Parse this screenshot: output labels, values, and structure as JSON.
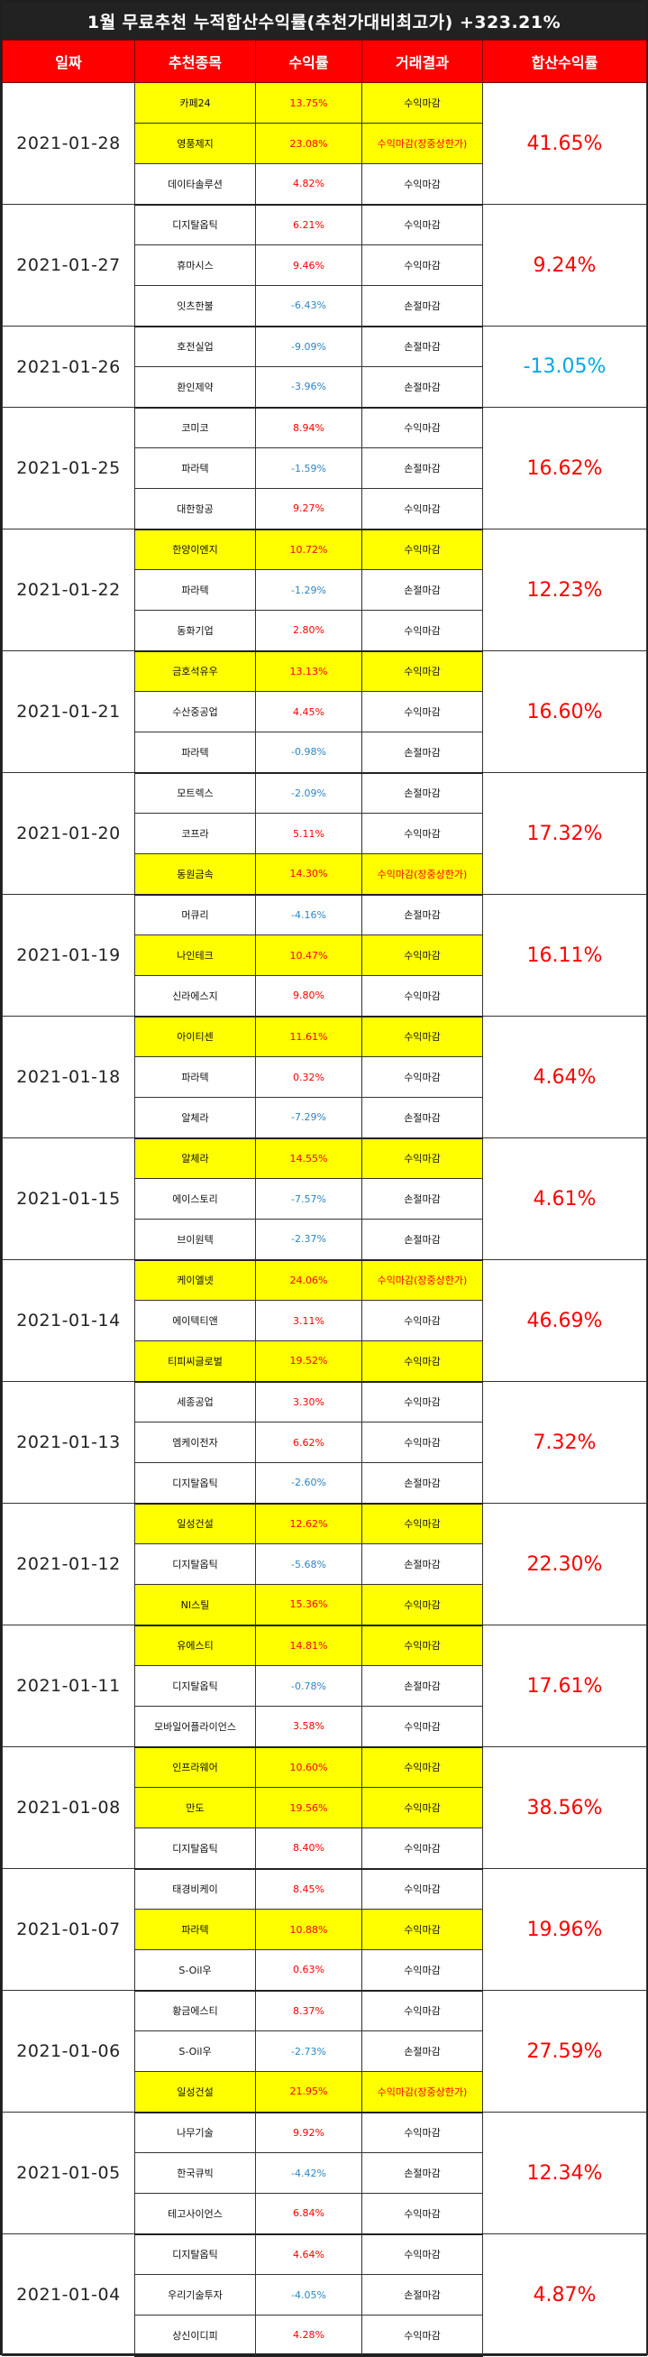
{
  "title": "1월 무료추천 누적합산수익률(추천가대비최고가) +323.21%",
  "headers": {
    "date": "일짜",
    "stock": "추천종목",
    "return": "수익률",
    "result": "거래결과",
    "cumulative": "합산수익률"
  },
  "groups": [
    {
      "date": "2021-01-28",
      "total": "41.65%",
      "rows": [
        {
          "stock": "카페24",
          "ret": "13.75%",
          "result": "수익마감",
          "hl": true
        },
        {
          "stock": "영풍제지",
          "ret": "23.08%",
          "result": "수익마감(장중상한가)",
          "hl": true
        },
        {
          "stock": "데이타솔루션",
          "ret": "4.82%",
          "result": "수익마감",
          "hl": false
        }
      ]
    },
    {
      "date": "2021-01-27",
      "total": "9.24%",
      "rows": [
        {
          "stock": "디지탈옵틱",
          "ret": "6.21%",
          "result": "수익마감",
          "hl": false
        },
        {
          "stock": "휴마시스",
          "ret": "9.46%",
          "result": "수익마감",
          "hl": false
        },
        {
          "stock": "잇츠한불",
          "ret": "-6.43%",
          "result": "손절마감",
          "hl": false
        }
      ]
    },
    {
      "date": "2021-01-26",
      "total": "-13.05%",
      "rows": [
        {
          "stock": "호전실업",
          "ret": "-9.09%",
          "result": "손절마감",
          "hl": false
        },
        {
          "stock": "환인제약",
          "ret": "-3.96%",
          "result": "손절마감",
          "hl": false
        }
      ]
    },
    {
      "date": "2021-01-25",
      "total": "16.62%",
      "rows": [
        {
          "stock": "코미코",
          "ret": "8.94%",
          "result": "수익마감",
          "hl": false
        },
        {
          "stock": "파라텍",
          "ret": "-1.59%",
          "result": "손절마감",
          "hl": false
        },
        {
          "stock": "대한항공",
          "ret": "9.27%",
          "result": "수익마감",
          "hl": false
        }
      ]
    },
    {
      "date": "2021-01-22",
      "total": "12.23%",
      "rows": [
        {
          "stock": "한양이엔지",
          "ret": "10.72%",
          "result": "수익마감",
          "hl": true
        },
        {
          "stock": "파라텍",
          "ret": "-1.29%",
          "result": "손절마감",
          "hl": false
        },
        {
          "stock": "동화기업",
          "ret": "2.80%",
          "result": "수익마감",
          "hl": false
        }
      ]
    },
    {
      "date": "2021-01-21",
      "total": "16.60%",
      "rows": [
        {
          "stock": "금호석유우",
          "ret": "13.13%",
          "result": "수익마감",
          "hl": true
        },
        {
          "stock": "수산중공업",
          "ret": "4.45%",
          "result": "수익마감",
          "hl": false
        },
        {
          "stock": "파라텍",
          "ret": "-0.98%",
          "result": "손절마감",
          "hl": false
        }
      ]
    },
    {
      "date": "2021-01-20",
      "total": "17.32%",
      "rows": [
        {
          "stock": "모트렉스",
          "ret": "-2.09%",
          "result": "손절마감",
          "hl": false
        },
        {
          "stock": "코프라",
          "ret": "5.11%",
          "result": "수익마감",
          "hl": false
        },
        {
          "stock": "동원금속",
          "ret": "14.30%",
          "result": "수익마감(장중상한가)",
          "hl": true
        }
      ]
    },
    {
      "date": "2021-01-19",
      "total": "16.11%",
      "rows": [
        {
          "stock": "머큐리",
          "ret": "-4.16%",
          "result": "손절마감",
          "hl": false
        },
        {
          "stock": "나인테크",
          "ret": "10.47%",
          "result": "수익마감",
          "hl": true
        },
        {
          "stock": "신라에스지",
          "ret": "9.80%",
          "result": "수익마감",
          "hl": false
        }
      ]
    },
    {
      "date": "2021-01-18",
      "total": "4.64%",
      "rows": [
        {
          "stock": "아이티센",
          "ret": "11.61%",
          "result": "수익마감",
          "hl": true
        },
        {
          "stock": "파라텍",
          "ret": "0.32%",
          "result": "수익마감",
          "hl": false
        },
        {
          "stock": "알체라",
          "ret": "-7.29%",
          "result": "손절마감",
          "hl": false
        }
      ]
    },
    {
      "date": "2021-01-15",
      "total": "4.61%",
      "rows": [
        {
          "stock": "알체라",
          "ret": "14.55%",
          "result": "수익마감",
          "hl": true
        },
        {
          "stock": "에이스토리",
          "ret": "-7.57%",
          "result": "손절마감",
          "hl": false
        },
        {
          "stock": "브이원텍",
          "ret": "-2.37%",
          "result": "손절마감",
          "hl": false
        }
      ]
    },
    {
      "date": "2021-01-14",
      "total": "46.69%",
      "rows": [
        {
          "stock": "케이엘넷",
          "ret": "24.06%",
          "result": "수익마감(장중상한가)",
          "hl": true
        },
        {
          "stock": "에이텍티앤",
          "ret": "3.11%",
          "result": "수익마감",
          "hl": false
        },
        {
          "stock": "티피씨글로벌",
          "ret": "19.52%",
          "result": "수익마감",
          "hl": true
        }
      ]
    },
    {
      "date": "2021-01-13",
      "total": "7.32%",
      "rows": [
        {
          "stock": "세종공업",
          "ret": "3.30%",
          "result": "수익마감",
          "hl": false
        },
        {
          "stock": "엠케이전자",
          "ret": "6.62%",
          "result": "수익마감",
          "hl": false
        },
        {
          "stock": "디지탈옵틱",
          "ret": "-2.60%",
          "result": "손절마감",
          "hl": false
        }
      ]
    },
    {
      "date": "2021-01-12",
      "total": "22.30%",
      "rows": [
        {
          "stock": "일성건설",
          "ret": "12.62%",
          "result": "수익마감",
          "hl": true
        },
        {
          "stock": "디지탈옵틱",
          "ret": "-5.68%",
          "result": "손절마감",
          "hl": false
        },
        {
          "stock": "NI스틸",
          "ret": "15.36%",
          "result": "수익마감",
          "hl": true
        }
      ]
    },
    {
      "date": "2021-01-11",
      "total": "17.61%",
      "rows": [
        {
          "stock": "유에스티",
          "ret": "14.81%",
          "result": "수익마감",
          "hl": true
        },
        {
          "stock": "디지탈옵틱",
          "ret": "-0.78%",
          "result": "손절마감",
          "hl": false
        },
        {
          "stock": "모바일어플라이언스",
          "ret": "3.58%",
          "result": "수익마감",
          "hl": false
        }
      ]
    },
    {
      "date": "2021-01-08",
      "total": "38.56%",
      "rows": [
        {
          "stock": "인프라웨어",
          "ret": "10.60%",
          "result": "수익마감",
          "hl": true
        },
        {
          "stock": "만도",
          "ret": "19.56%",
          "result": "수익마감",
          "hl": true
        },
        {
          "stock": "디지탈옵틱",
          "ret": "8.40%",
          "result": "수익마감",
          "hl": false
        }
      ]
    },
    {
      "date": "2021-01-07",
      "total": "19.96%",
      "rows": [
        {
          "stock": "태경비케이",
          "ret": "8.45%",
          "result": "수익마감",
          "hl": false
        },
        {
          "stock": "파라텍",
          "ret": "10.88%",
          "result": "수익마감",
          "hl": true
        },
        {
          "stock": "S-Oil우",
          "ret": "0.63%",
          "result": "수익마감",
          "hl": false
        }
      ]
    },
    {
      "date": "2021-01-06",
      "total": "27.59%",
      "rows": [
        {
          "stock": "황금에스티",
          "ret": "8.37%",
          "result": "수익마감",
          "hl": false
        },
        {
          "stock": "S-Oil우",
          "ret": "-2.73%",
          "result": "손절마감",
          "hl": false
        },
        {
          "stock": "일성건설",
          "ret": "21.95%",
          "result": "수익마감(장중상한가)",
          "hl": true
        }
      ]
    },
    {
      "date": "2021-01-05",
      "total": "12.34%",
      "rows": [
        {
          "stock": "나무기술",
          "ret": "9.92%",
          "result": "수익마감",
          "hl": false
        },
        {
          "stock": "한국큐빅",
          "ret": "-4.42%",
          "result": "손절마감",
          "hl": false
        },
        {
          "stock": "테고사이언스",
          "ret": "6.84%",
          "result": "수익마감",
          "hl": false
        }
      ]
    },
    {
      "date": "2021-01-04",
      "total": "4.87%",
      "rows": [
        {
          "stock": "디지탈옵틱",
          "ret": "4.64%",
          "result": "수익마감",
          "hl": false
        },
        {
          "stock": "우리기술투자",
          "ret": "-4.05%",
          "result": "손절마감",
          "hl": false
        },
        {
          "stock": "상신이디피",
          "ret": "4.28%",
          "result": "수익마감",
          "hl": false
        }
      ]
    }
  ],
  "colors": {
    "header_bg": "#ff0000",
    "title_bg": "#222222",
    "highlight": "#ffff00",
    "positive": "#ff0000",
    "negative": "#2e86c1"
  }
}
